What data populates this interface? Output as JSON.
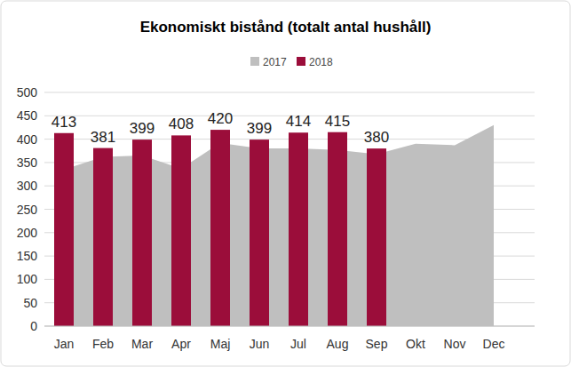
{
  "chart_data": {
    "type": "bar",
    "title": "Ekonomiskt bistånd (totalt antal hushåll)",
    "categories": [
      "Jan",
      "Feb",
      "Mar",
      "Apr",
      "Maj",
      "Jun",
      "Jul",
      "Aug",
      "Sep",
      "Okt",
      "Nov",
      "Dec"
    ],
    "series": [
      {
        "name": "2017",
        "type": "area",
        "color": "#bfbfbf",
        "values": [
          335,
          362,
          365,
          337,
          392,
          380,
          380,
          377,
          368,
          390,
          387,
          430
        ]
      },
      {
        "name": "2018",
        "type": "bar",
        "color": "#9b0d3a",
        "data_labels": true,
        "values": [
          413,
          381,
          399,
          408,
          420,
          399,
          414,
          415,
          380,
          null,
          null,
          null
        ]
      }
    ],
    "ylim": [
      0,
      500
    ],
    "yticks": [
      0,
      50,
      100,
      150,
      200,
      250,
      300,
      350,
      400,
      450,
      500
    ],
    "grid": true,
    "legend": "top"
  }
}
